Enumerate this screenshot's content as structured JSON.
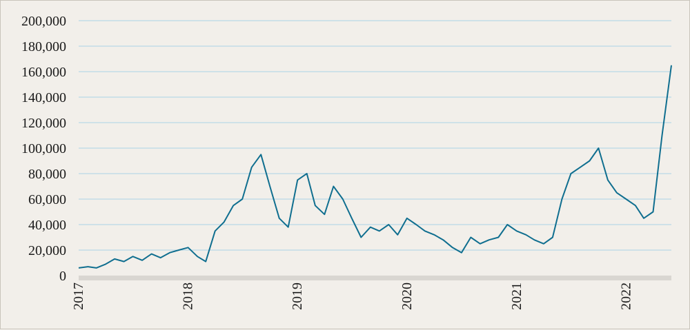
{
  "chart_data": {
    "type": "line",
    "title": "",
    "xlabel": "",
    "ylabel": "",
    "ylim": [
      0,
      200000
    ],
    "yticks": [
      0,
      20000,
      40000,
      60000,
      80000,
      100000,
      120000,
      140000,
      160000,
      180000,
      200000
    ],
    "ytick_labels": [
      "0",
      "20,000",
      "40,000",
      "60,000",
      "80,000",
      "100,000",
      "120,000",
      "140,000",
      "160,000",
      "180,000",
      "200,000"
    ],
    "xlim": [
      "2017-01-01",
      "2022-06-01"
    ],
    "xticks": [
      "2017-01-01",
      "2018-01-01",
      "2019-01-01",
      "2020-01-01",
      "2021-01-01",
      "2022-01-01"
    ],
    "xtick_labels": [
      "2017",
      "2018",
      "2019",
      "2020",
      "2021",
      "2022"
    ],
    "grid": true,
    "legend": "none",
    "colors": {
      "line": "#0f6e8f",
      "grid": "#a9d3e6",
      "axis_band": "#d9d6d1",
      "background": "#f2efea"
    },
    "series": [
      {
        "x": [
          "2017-01-01",
          "2017-02-01",
          "2017-03-01",
          "2017-04-01",
          "2017-05-01",
          "2017-06-01",
          "2017-07-01",
          "2017-08-01",
          "2017-09-01",
          "2017-10-01",
          "2017-11-01",
          "2017-12-01",
          "2018-01-01",
          "2018-02-01",
          "2018-03-01",
          "2018-04-01",
          "2018-05-01",
          "2018-06-01",
          "2018-07-01",
          "2018-08-01",
          "2018-09-01",
          "2018-10-01",
          "2018-11-01",
          "2018-12-01",
          "2019-01-01",
          "2019-02-01",
          "2019-03-01",
          "2019-04-01",
          "2019-05-01",
          "2019-06-01",
          "2019-07-01",
          "2019-08-01",
          "2019-09-01",
          "2019-10-01",
          "2019-11-01",
          "2019-12-01",
          "2020-01-01",
          "2020-02-01",
          "2020-03-01",
          "2020-04-01",
          "2020-05-01",
          "2020-06-01",
          "2020-07-01",
          "2020-08-01",
          "2020-09-01",
          "2020-10-01",
          "2020-11-01",
          "2020-12-01",
          "2021-01-01",
          "2021-02-01",
          "2021-03-01",
          "2021-04-01",
          "2021-05-01",
          "2021-06-01",
          "2021-07-01",
          "2021-08-01",
          "2021-09-01",
          "2021-10-01",
          "2021-11-01",
          "2021-12-01",
          "2022-01-01",
          "2022-02-01",
          "2022-03-01",
          "2022-04-01",
          "2022-05-01",
          "2022-06-01"
        ],
        "values": [
          6000,
          7000,
          6000,
          9000,
          13000,
          11000,
          15000,
          12000,
          17000,
          14000,
          18000,
          20000,
          22000,
          15000,
          11000,
          35000,
          42000,
          55000,
          60000,
          85000,
          95000,
          70000,
          45000,
          38000,
          75000,
          80000,
          55000,
          48000,
          70000,
          60000,
          45000,
          30000,
          38000,
          35000,
          40000,
          32000,
          45000,
          40000,
          35000,
          32000,
          28000,
          22000,
          18000,
          30000,
          25000,
          28000,
          30000,
          40000,
          35000,
          32000,
          28000,
          25000,
          30000,
          60000,
          80000,
          85000,
          90000,
          100000,
          75000,
          65000,
          60000,
          55000,
          45000,
          50000,
          110000,
          165000
        ]
      }
    ]
  }
}
